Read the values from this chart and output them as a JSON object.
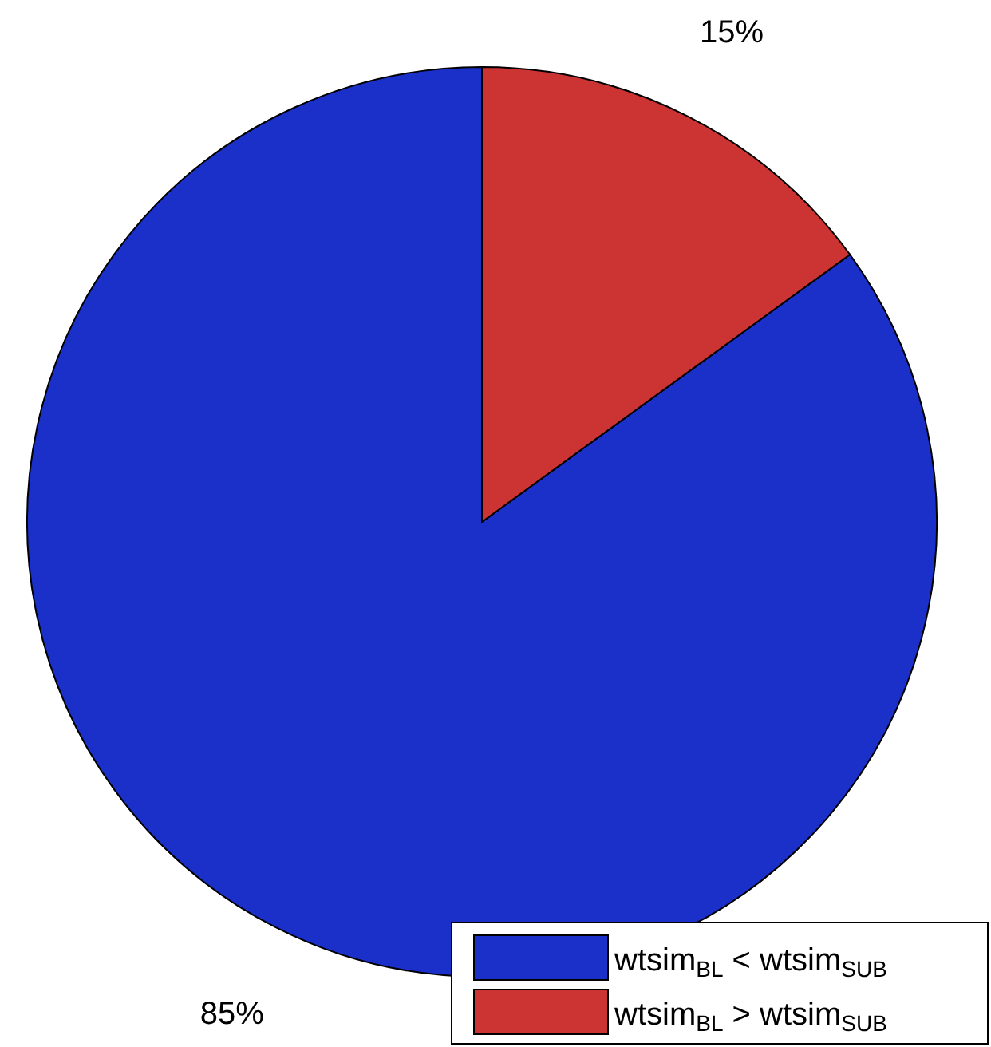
{
  "chart_data": {
    "type": "pie",
    "categories": [
      "wtsim$_{BL}$ < wtsim$_{SUB}$",
      "wtsim$_{BL}$ > wtsim$_{SUB}$"
    ],
    "values": [
      85,
      15
    ],
    "colors": [
      "#1a30c8",
      "#cc3333"
    ],
    "value_labels": [
      "85%",
      "15%"
    ],
    "legend": "bottom right"
  }
}
